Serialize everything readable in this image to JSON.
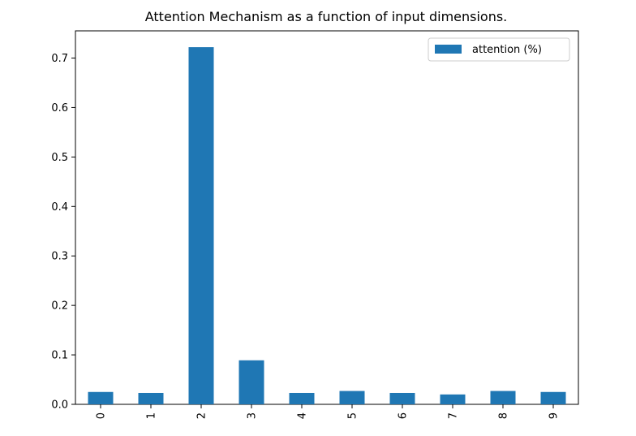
{
  "chart_data": {
    "type": "bar",
    "title": "Attention Mechanism as a function of input dimensions.",
    "xlabel": "",
    "ylabel": "",
    "categories": [
      "0",
      "1",
      "2",
      "3",
      "4",
      "5",
      "6",
      "7",
      "8",
      "9"
    ],
    "series": [
      {
        "name": "attention (%)",
        "color": "#1f77b4",
        "values": [
          0.025,
          0.023,
          0.722,
          0.089,
          0.023,
          0.027,
          0.023,
          0.02,
          0.027,
          0.025
        ]
      }
    ],
    "ylim": [
      0,
      0.755
    ],
    "yticks": [
      "0.0",
      "0.1",
      "0.2",
      "0.3",
      "0.4",
      "0.5",
      "0.6",
      "0.7"
    ],
    "x_tick_rotation": "vertical",
    "grid": false,
    "legend_position": "top-right"
  }
}
